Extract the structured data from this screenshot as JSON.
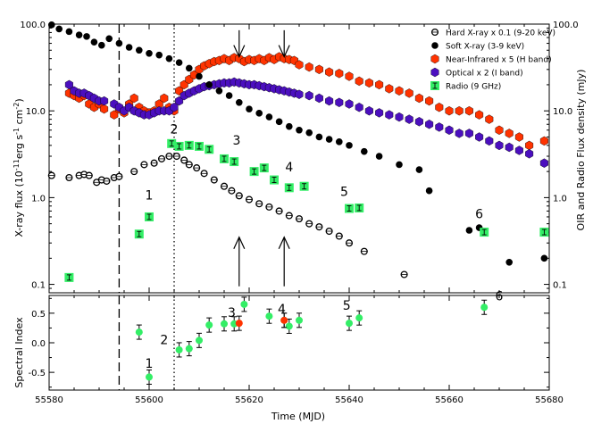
{
  "chart_data": [
    {
      "id": "top",
      "type": "scatter",
      "xlabel": "",
      "ylabel_left": "X-ray flux (10^-11 erg s^-1 cm^-2)",
      "ylabel_right": "OIR and Radio Flux density (mJy)",
      "xlim": [
        55580,
        55680
      ],
      "ylim": [
        0.08,
        100
      ],
      "yscale": "log",
      "ytick_values": [
        0.1,
        1.0,
        10.0,
        100.0
      ],
      "yticks_left": [
        "0.1",
        "1.0",
        "10.0",
        "100.0"
      ],
      "yticks_right": [
        "0.1",
        "1.0",
        "10.0",
        "100.0"
      ],
      "legend": {
        "position": "top-right"
      },
      "series": [
        {
          "name": "Hard X-ray  x 0.1 (9-20 keV)",
          "marker": "open-circle",
          "color": "#000000",
          "x": [
            55580.5,
            55584,
            55586,
            55587,
            55588,
            55589.5,
            55590.5,
            55591.5,
            55593,
            55594,
            55597,
            55599,
            55601,
            55602.5,
            55604,
            55605.5,
            55607,
            55608,
            55609.5,
            55611,
            55613,
            55615,
            55616.5,
            55618,
            55620,
            55622,
            55624,
            55626,
            55628,
            55630,
            55632,
            55634,
            55636,
            55638,
            55640,
            55643,
            55651
          ],
          "y": [
            1.8,
            1.7,
            1.8,
            1.85,
            1.8,
            1.5,
            1.6,
            1.55,
            1.7,
            1.75,
            2.0,
            2.4,
            2.5,
            2.8,
            3.0,
            3.0,
            2.7,
            2.4,
            2.2,
            1.9,
            1.6,
            1.35,
            1.2,
            1.05,
            0.95,
            0.85,
            0.78,
            0.7,
            0.62,
            0.57,
            0.5,
            0.46,
            0.41,
            0.36,
            0.3,
            0.24,
            0.13
          ]
        },
        {
          "name": "Soft X-ray (3-9 keV)",
          "marker": "filled-circle",
          "color": "#000000",
          "x": [
            55580.5,
            55582,
            55584,
            55586,
            55587.5,
            55589,
            55590.5,
            55592,
            55594,
            55596,
            55598,
            55600,
            55602,
            55604,
            55606,
            55608,
            55610,
            55612,
            55614,
            55616,
            55618,
            55620,
            55622,
            55624,
            55626,
            55628,
            55630,
            55632,
            55634,
            55636,
            55638,
            55640,
            55643,
            55646,
            55650,
            55654,
            55656,
            55664,
            55666,
            55672,
            55679
          ],
          "y": [
            98,
            88,
            82,
            75,
            72,
            62,
            57,
            68,
            60,
            54,
            50,
            46,
            44,
            40,
            36,
            31,
            25,
            20,
            17,
            15,
            12.5,
            10.5,
            9.4,
            8.5,
            7.5,
            6.6,
            6.0,
            5.6,
            5.0,
            4.7,
            4.4,
            4.0,
            3.4,
            3.0,
            2.4,
            2.1,
            1.2,
            0.42,
            0.45,
            0.18,
            0.2
          ]
        },
        {
          "name": "Near-Infrared x 5 (H band)",
          "marker": "hexagon",
          "color": "#ff3300",
          "x": [
            55584,
            55585,
            55586,
            55587,
            55588,
            55589,
            55590,
            55591,
            55593,
            55594,
            55595,
            55596,
            55597,
            55598,
            55599,
            55600,
            55601,
            55602,
            55603,
            55604,
            55605,
            55606,
            55607,
            55608,
            55609,
            55610,
            55611,
            55612,
            55613,
            55614,
            55615,
            55616,
            55617,
            55618,
            55619,
            55620,
            55621,
            55622,
            55623,
            55624,
            55625,
            55626,
            55627,
            55628,
            55629,
            55630,
            55632,
            55634,
            55636,
            55638,
            55640,
            55642,
            55644,
            55646,
            55648,
            55650,
            55652,
            55654,
            55656,
            55658,
            55660,
            55662,
            55664,
            55666,
            55668,
            55670,
            55672,
            55674,
            55676,
            55679
          ],
          "y": [
            16,
            15,
            14,
            15,
            12,
            11,
            12,
            10.5,
            9,
            10.5,
            9.5,
            12,
            14,
            11,
            10,
            9.5,
            10,
            12,
            14,
            11,
            10,
            17,
            20,
            23,
            26,
            30,
            33,
            35,
            37,
            38,
            40,
            38,
            41,
            40,
            37,
            39,
            38,
            40,
            38,
            41,
            39,
            42,
            40,
            39,
            38,
            34,
            32,
            30,
            28,
            27,
            25,
            22,
            21,
            20,
            18,
            17,
            16,
            14,
            13,
            11,
            10,
            10,
            10,
            9,
            8,
            6,
            5.5,
            5,
            4,
            4.5
          ]
        },
        {
          "name": "Optical x 2 (I band)",
          "marker": "hexagon",
          "color": "#4b0fbf",
          "x": [
            55584,
            55585,
            55586,
            55587,
            55588,
            55589,
            55590,
            55591,
            55593,
            55594,
            55595,
            55596,
            55597,
            55598,
            55599,
            55600,
            55601,
            55602,
            55603,
            55604,
            55605,
            55606,
            55607,
            55608,
            55609,
            55610,
            55611,
            55612,
            55613,
            55614,
            55615,
            55616,
            55617,
            55618,
            55619,
            55620,
            55621,
            55622,
            55623,
            55624,
            55625,
            55626,
            55627,
            55628,
            55629,
            55630,
            55632,
            55634,
            55636,
            55638,
            55640,
            55642,
            55644,
            55646,
            55648,
            55650,
            55652,
            55654,
            55656,
            55658,
            55660,
            55662,
            55664,
            55666,
            55668,
            55670,
            55672,
            55674,
            55676,
            55679
          ],
          "y": [
            20,
            17,
            16,
            16,
            15,
            14,
            13,
            13,
            12,
            11,
            10,
            11,
            10,
            9.5,
            9,
            9,
            9.5,
            10,
            10,
            10,
            11,
            13,
            15,
            16,
            17,
            18,
            19,
            19.5,
            20,
            20.5,
            21,
            21,
            21.5,
            21,
            20.5,
            20,
            20,
            19.5,
            19,
            18.5,
            18,
            17.5,
            17,
            16.5,
            16,
            15.5,
            15,
            14,
            13,
            12.5,
            12,
            11,
            10,
            9.5,
            9,
            8.5,
            8,
            7.5,
            7,
            6.5,
            6,
            5.5,
            5.5,
            5,
            4.5,
            4,
            3.8,
            3.5,
            3.2,
            2.5
          ]
        },
        {
          "name": "Radio (9 GHz)",
          "marker": "square",
          "color": "#33ee66",
          "x": [
            55584,
            55598,
            55600,
            55604.5,
            55606,
            55608,
            55610,
            55612,
            55615,
            55617,
            55621,
            55623,
            55625,
            55628,
            55631,
            55640,
            55642,
            55667,
            55679
          ],
          "y": [
            0.12,
            0.38,
            0.6,
            4.2,
            3.9,
            4.0,
            3.9,
            3.6,
            2.8,
            2.6,
            2.0,
            2.2,
            1.6,
            1.3,
            1.35,
            0.75,
            0.76,
            0.4,
            0.4
          ]
        }
      ],
      "annotations": {
        "epoch_labels": [
          {
            "text": "1",
            "x": 55600,
            "y": 0.95
          },
          {
            "text": "2",
            "x": 55605,
            "y": 5.5
          },
          {
            "text": "3",
            "x": 55617.5,
            "y": 4.1
          },
          {
            "text": "4",
            "x": 55628,
            "y": 2.0
          },
          {
            "text": "5",
            "x": 55639,
            "y": 1.05
          },
          {
            "text": "6",
            "x": 55666,
            "y": 0.58
          }
        ],
        "vertical_lines": [
          {
            "x": 55594,
            "style": "dashed"
          },
          {
            "x": 55605,
            "style": "dotted"
          }
        ],
        "arrows_down": [
          {
            "x": 55618,
            "y_from": 85,
            "y_to": 42
          },
          {
            "x": 55627,
            "y_from": 85,
            "y_to": 42
          }
        ],
        "arrows_up": [
          {
            "x": 55618,
            "y_from": 0.095,
            "y_to": 0.35
          },
          {
            "x": 55627,
            "y_from": 0.095,
            "y_to": 0.35
          }
        ]
      }
    },
    {
      "id": "bottom",
      "type": "scatter",
      "xlabel": "Time (MJD)",
      "ylabel": "Spectral Index",
      "xlim": [
        55580,
        55680
      ],
      "ylim": [
        -0.8,
        0.8
      ],
      "xticks": [
        "55580",
        "55600",
        "55620",
        "55640",
        "55660",
        "55680"
      ],
      "yticks": [
        "-0.5",
        "0.0",
        "0.5"
      ],
      "series": [
        {
          "name": "",
          "marker": "filled-circle",
          "color": "#33ee66",
          "x": [
            55598,
            55600,
            55606,
            55608,
            55610,
            55612,
            55615,
            55617,
            55619,
            55624,
            55627,
            55628,
            55630,
            55640,
            55642,
            55667
          ],
          "y": [
            0.18,
            -0.58,
            -0.12,
            -0.1,
            0.04,
            0.3,
            0.32,
            0.32,
            0.65,
            0.45,
            0.38,
            0.28,
            0.38,
            0.33,
            0.42,
            0.6
          ]
        },
        {
          "name": "",
          "marker": "filled-circle",
          "color": "#ff3300",
          "x": [
            55618,
            55627
          ],
          "y": [
            0.33,
            0.38
          ]
        }
      ],
      "annotations": {
        "epoch_labels": [
          {
            "text": "1",
            "x": 55600,
            "y": -0.42
          },
          {
            "text": "2",
            "x": 55603,
            "y": -0.02
          },
          {
            "text": "3",
            "x": 55616.5,
            "y": 0.44
          },
          {
            "text": "4",
            "x": 55626.5,
            "y": 0.5
          },
          {
            "text": "5",
            "x": 55639.5,
            "y": 0.56
          },
          {
            "text": "6",
            "x": 55670,
            "y": 0.72
          }
        ],
        "vertical_lines": [
          {
            "x": 55594,
            "style": "dashed"
          },
          {
            "x": 55605,
            "style": "dotted"
          }
        ]
      }
    }
  ]
}
